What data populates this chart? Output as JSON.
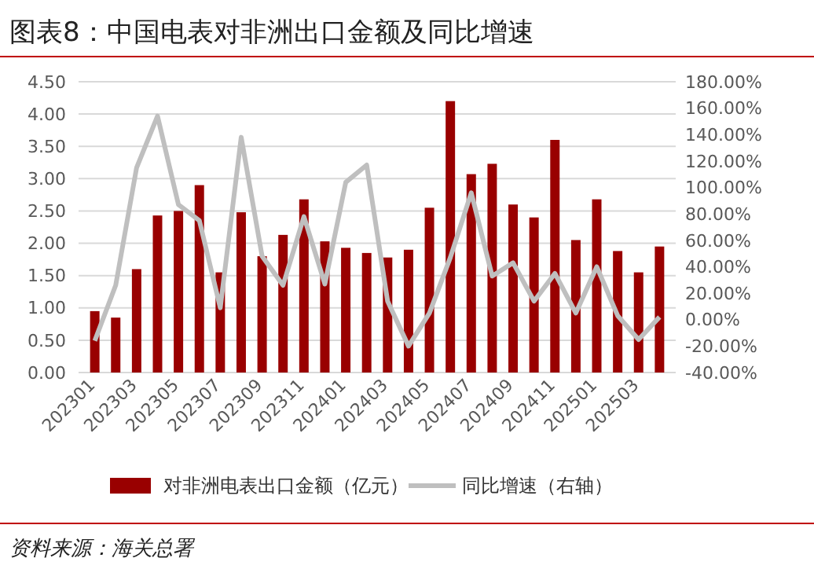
{
  "chart_data": {
    "type": "bar",
    "title": "图表8：中国电表对非洲出口金额及同比增速",
    "categories": [
      "202301",
      null,
      "202303",
      null,
      "202305",
      null,
      "202307",
      null,
      "202309",
      null,
      "202311",
      null,
      "202401",
      null,
      "202403",
      null,
      "202405",
      null,
      "202407",
      null,
      "202409",
      null,
      "202411",
      null,
      "202501",
      null,
      "202503",
      null
    ],
    "series": [
      {
        "name": "对非洲电表出口金额（亿元）",
        "color": "#990000",
        "values": [
          0.95,
          0.85,
          1.6,
          2.43,
          2.5,
          2.9,
          1.55,
          2.48,
          1.8,
          2.13,
          2.68,
          2.03,
          1.93,
          1.85,
          1.78,
          1.9,
          2.55,
          4.2,
          3.07,
          3.23,
          2.6,
          2.4,
          3.6,
          2.05,
          2.68,
          1.88,
          1.55,
          1.95
        ]
      },
      {
        "name": "同比增速（右轴）",
        "type": "line",
        "axis": "y2",
        "color": "#bfbfbf",
        "values": [
          -16,
          26,
          115,
          154,
          87,
          75,
          9,
          138,
          48,
          26,
          78,
          27,
          104,
          117,
          14,
          -20,
          5,
          47,
          96,
          33,
          43,
          14,
          35,
          5,
          40,
          3,
          -15,
          2
        ]
      }
    ],
    "ylim": [
      0,
      4.5
    ],
    "yticks": [
      {
        "value": 0,
        "label": "0.00"
      },
      {
        "value": 0.5,
        "label": "0.50"
      },
      {
        "value": 1,
        "label": "1.00"
      },
      {
        "value": 1.5,
        "label": "1.50"
      },
      {
        "value": 2,
        "label": "2.00"
      },
      {
        "value": 2.5,
        "label": "2.50"
      },
      {
        "value": 3,
        "label": "3.00"
      },
      {
        "value": 3.5,
        "label": "3.50"
      },
      {
        "value": 4,
        "label": "4.00"
      },
      {
        "value": 4.5,
        "label": "4.50"
      }
    ],
    "y2lim": [
      -40,
      180
    ],
    "y2ticks": [
      {
        "value": -40,
        "label": "-40.00%"
      },
      {
        "value": -20,
        "label": "-20.00%"
      },
      {
        "value": 0,
        "label": "0.00%"
      },
      {
        "value": 20,
        "label": "20.00%"
      },
      {
        "value": 40,
        "label": "40.00%"
      },
      {
        "value": 60,
        "label": "60.00%"
      },
      {
        "value": 80,
        "label": "80.00%"
      },
      {
        "value": 100,
        "label": "100.00%"
      },
      {
        "value": 120,
        "label": "120.00%"
      },
      {
        "value": 140,
        "label": "140.00%"
      },
      {
        "value": 160,
        "label": "160.00%"
      },
      {
        "value": 180,
        "label": "180.00%"
      }
    ],
    "grid": "y",
    "legend": "bottom",
    "marker": "none",
    "line_style": "solid",
    "annotations": [
      "资料来源：海关总署"
    ]
  }
}
